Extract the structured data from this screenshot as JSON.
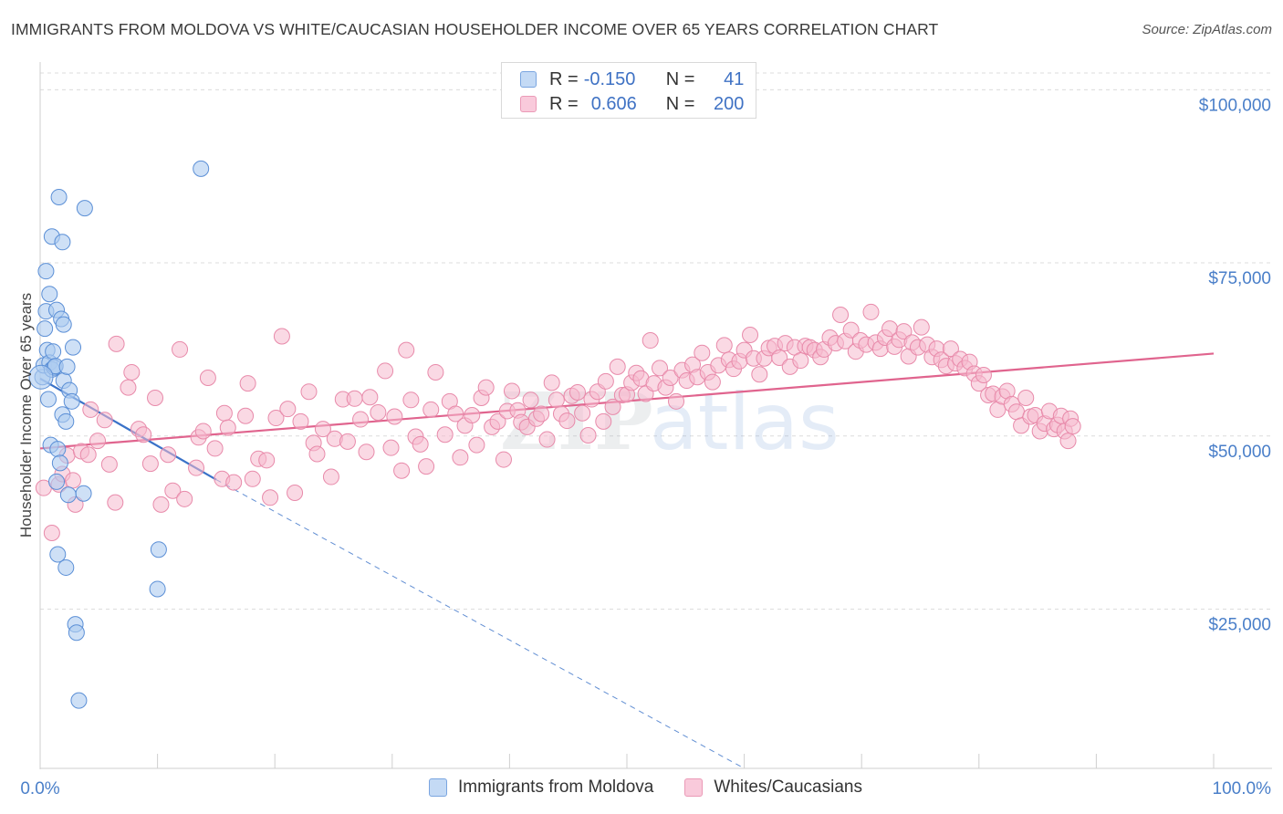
{
  "header": {
    "title": "IMMIGRANTS FROM MOLDOVA VS WHITE/CAUCASIAN HOUSEHOLDER INCOME OVER 65 YEARS CORRELATION CHART",
    "source": "Source: ZipAtlas.com"
  },
  "legend_top": {
    "rows": [
      {
        "r_label": "R =",
        "r_value": "-0.150",
        "n_label": "N =",
        "n_value": "41"
      },
      {
        "r_label": "R =",
        "r_value": "0.606",
        "n_label": "N =",
        "n_value": "200"
      }
    ]
  },
  "legend_bottom": {
    "items": [
      "Immigrants from Moldova",
      "Whites/Caucasians"
    ]
  },
  "colors": {
    "blue_fill": "#aecbf0",
    "blue_stroke": "#5b8fd6",
    "blue_line": "#3a72c8",
    "pink_fill": "#f6b9cd",
    "pink_stroke": "#e88aaa",
    "pink_line": "#e0648e",
    "grid": "#dcdcdc",
    "tick_label": "#4a7fc9"
  },
  "chart_data": {
    "type": "scatter",
    "title": "IMMIGRANTS FROM MOLDOVA VS WHITE/CAUCASIAN HOUSEHOLDER INCOME OVER 65 YEARS CORRELATION CHART",
    "xlabel": "",
    "ylabel": "Householder Income Over 65 years",
    "x_tick_labels": [
      "0.0%",
      "100.0%"
    ],
    "y_tick_labels": [
      "$25,000",
      "$50,000",
      "$75,000",
      "$100,000"
    ],
    "y_ticks": [
      25000,
      50000,
      75000,
      100000
    ],
    "xlim": [
      0,
      100
    ],
    "ylim": [
      2000,
      104000
    ],
    "grid": true,
    "legend_position": "top-center",
    "watermark": "ZIPatlas",
    "series": [
      {
        "name": "Immigrants from Moldova",
        "color": "#aecbf0",
        "points": [
          [
            0.2,
            58.5
          ],
          [
            0.3,
            60.2
          ],
          [
            0.4,
            65.5
          ],
          [
            0.5,
            68.0
          ],
          [
            0.5,
            73.8
          ],
          [
            0.6,
            62.4
          ],
          [
            0.7,
            55.3
          ],
          [
            0.8,
            70.5
          ],
          [
            0.8,
            60.6
          ],
          [
            0.9,
            48.7
          ],
          [
            1.0,
            78.8
          ],
          [
            1.0,
            59.6
          ],
          [
            1.1,
            62.2
          ],
          [
            1.2,
            59.9
          ],
          [
            1.3,
            60.1
          ],
          [
            1.4,
            68.2
          ],
          [
            1.4,
            43.4
          ],
          [
            1.5,
            48.1
          ],
          [
            1.5,
            32.9
          ],
          [
            1.6,
            84.5
          ],
          [
            1.7,
            46.1
          ],
          [
            1.8,
            66.9
          ],
          [
            1.9,
            53.1
          ],
          [
            1.9,
            78.0
          ],
          [
            2.0,
            66.1
          ],
          [
            2.0,
            58.0
          ],
          [
            2.2,
            31.0
          ],
          [
            2.2,
            52.1
          ],
          [
            2.3,
            60.0
          ],
          [
            2.4,
            41.5
          ],
          [
            2.5,
            56.6
          ],
          [
            2.7,
            55.0
          ],
          [
            2.8,
            62.8
          ],
          [
            3.0,
            22.8
          ],
          [
            3.1,
            21.6
          ],
          [
            3.3,
            11.8
          ],
          [
            3.7,
            41.7
          ],
          [
            3.8,
            82.9
          ],
          [
            10.0,
            27.9
          ],
          [
            10.1,
            33.6
          ],
          [
            13.7,
            88.6
          ]
        ],
        "trend": {
          "x": [
            0,
            15
          ],
          "y": [
            58.3,
            43.7
          ]
        },
        "trend_extension": {
          "x": [
            15,
            60
          ],
          "y": [
            43.7,
            2.0
          ]
        }
      },
      {
        "name": "Whites/Caucasians",
        "color": "#f6b9cd",
        "points": [
          [
            0.3,
            42.5
          ],
          [
            1.0,
            36.0
          ],
          [
            1.6,
            43.0
          ],
          [
            1.9,
            44.5
          ],
          [
            2.3,
            47.2
          ],
          [
            2.8,
            43.6
          ],
          [
            3.0,
            40.1
          ],
          [
            3.5,
            47.8
          ],
          [
            4.1,
            47.3
          ],
          [
            4.3,
            53.8
          ],
          [
            4.9,
            49.3
          ],
          [
            5.5,
            52.3
          ],
          [
            5.9,
            45.9
          ],
          [
            6.4,
            40.4
          ],
          [
            6.5,
            63.3
          ],
          [
            7.5,
            57.0
          ],
          [
            7.8,
            59.2
          ],
          [
            8.4,
            51.0
          ],
          [
            8.8,
            50.2
          ],
          [
            9.4,
            46.0
          ],
          [
            9.8,
            55.5
          ],
          [
            10.3,
            40.1
          ],
          [
            10.9,
            47.3
          ],
          [
            11.3,
            42.1
          ],
          [
            11.9,
            62.5
          ],
          [
            12.3,
            40.9
          ],
          [
            13.3,
            45.4
          ],
          [
            13.5,
            49.8
          ],
          [
            13.9,
            50.7
          ],
          [
            14.3,
            58.4
          ],
          [
            14.9,
            48.2
          ],
          [
            15.5,
            43.8
          ],
          [
            15.7,
            53.3
          ],
          [
            16.0,
            51.2
          ],
          [
            16.5,
            43.3
          ],
          [
            17.5,
            52.9
          ],
          [
            17.7,
            57.6
          ],
          [
            18.1,
            43.8
          ],
          [
            18.6,
            46.7
          ],
          [
            19.3,
            46.5
          ],
          [
            19.6,
            41.1
          ],
          [
            20.1,
            52.6
          ],
          [
            20.6,
            64.4
          ],
          [
            21.1,
            53.9
          ],
          [
            21.7,
            41.8
          ],
          [
            22.2,
            52.1
          ],
          [
            22.9,
            56.4
          ],
          [
            23.3,
            49.0
          ],
          [
            23.6,
            47.4
          ],
          [
            24.1,
            51.0
          ],
          [
            24.8,
            44.1
          ],
          [
            25.1,
            49.6
          ],
          [
            25.8,
            55.3
          ],
          [
            26.2,
            49.2
          ],
          [
            26.8,
            55.4
          ],
          [
            27.3,
            52.4
          ],
          [
            27.8,
            47.7
          ],
          [
            28.1,
            55.6
          ],
          [
            28.8,
            53.4
          ],
          [
            29.4,
            59.4
          ],
          [
            29.9,
            48.3
          ],
          [
            30.2,
            52.8
          ],
          [
            30.8,
            45.0
          ],
          [
            31.2,
            62.4
          ],
          [
            31.6,
            55.2
          ],
          [
            32.0,
            49.9
          ],
          [
            32.4,
            48.8
          ],
          [
            32.9,
            45.6
          ],
          [
            33.3,
            53.8
          ],
          [
            33.7,
            59.2
          ],
          [
            34.5,
            50.2
          ],
          [
            34.9,
            55.0
          ],
          [
            35.4,
            53.2
          ],
          [
            35.8,
            46.9
          ],
          [
            36.2,
            51.5
          ],
          [
            36.8,
            53.0
          ],
          [
            37.2,
            48.7
          ],
          [
            37.6,
            55.5
          ],
          [
            38.0,
            57.0
          ],
          [
            38.5,
            51.3
          ],
          [
            39.0,
            52.1
          ],
          [
            39.5,
            46.6
          ],
          [
            39.8,
            53.6
          ],
          [
            40.2,
            56.5
          ],
          [
            40.7,
            53.7
          ],
          [
            41.0,
            52.0
          ],
          [
            41.5,
            51.3
          ],
          [
            41.8,
            55.2
          ],
          [
            42.3,
            52.5
          ],
          [
            42.7,
            53.2
          ],
          [
            43.2,
            49.5
          ],
          [
            43.6,
            57.7
          ],
          [
            44.0,
            55.2
          ],
          [
            44.4,
            53.2
          ],
          [
            44.9,
            52.2
          ],
          [
            45.3,
            55.8
          ],
          [
            45.8,
            56.3
          ],
          [
            46.2,
            53.3
          ],
          [
            46.7,
            50.1
          ],
          [
            47.0,
            55.3
          ],
          [
            47.5,
            56.4
          ],
          [
            48.0,
            52.1
          ],
          [
            48.2,
            57.9
          ],
          [
            48.8,
            54.2
          ],
          [
            49.2,
            60.0
          ],
          [
            49.6,
            55.9
          ],
          [
            50.0,
            56.0
          ],
          [
            50.4,
            57.7
          ],
          [
            50.8,
            59.1
          ],
          [
            51.2,
            58.3
          ],
          [
            51.6,
            56.1
          ],
          [
            52.0,
            63.8
          ],
          [
            52.3,
            57.6
          ],
          [
            52.8,
            59.8
          ],
          [
            53.3,
            57.0
          ],
          [
            53.7,
            58.4
          ],
          [
            54.2,
            55.0
          ],
          [
            54.7,
            59.5
          ],
          [
            55.1,
            58.0
          ],
          [
            55.6,
            60.3
          ],
          [
            56.0,
            58.5
          ],
          [
            56.4,
            62.0
          ],
          [
            56.9,
            59.2
          ],
          [
            57.3,
            57.8
          ],
          [
            57.8,
            60.2
          ],
          [
            58.3,
            63.1
          ],
          [
            58.7,
            61.0
          ],
          [
            59.1,
            59.7
          ],
          [
            59.6,
            60.8
          ],
          [
            60.0,
            62.4
          ],
          [
            60.5,
            64.6
          ],
          [
            60.8,
            61.2
          ],
          [
            61.3,
            58.9
          ],
          [
            61.7,
            61.2
          ],
          [
            62.1,
            62.7
          ],
          [
            62.6,
            63.0
          ],
          [
            63.0,
            61.3
          ],
          [
            63.5,
            63.4
          ],
          [
            63.9,
            60.0
          ],
          [
            64.3,
            62.8
          ],
          [
            64.8,
            60.9
          ],
          [
            65.2,
            63.0
          ],
          [
            65.6,
            62.8
          ],
          [
            66.0,
            62.4
          ],
          [
            66.5,
            61.4
          ],
          [
            66.8,
            62.5
          ],
          [
            67.3,
            64.2
          ],
          [
            67.8,
            63.4
          ],
          [
            68.2,
            67.5
          ],
          [
            68.6,
            63.7
          ],
          [
            69.1,
            65.3
          ],
          [
            69.5,
            62.2
          ],
          [
            69.9,
            63.8
          ],
          [
            70.4,
            63.2
          ],
          [
            70.8,
            67.9
          ],
          [
            71.2,
            63.5
          ],
          [
            71.6,
            62.6
          ],
          [
            72.0,
            64.2
          ],
          [
            72.4,
            65.5
          ],
          [
            72.8,
            62.9
          ],
          [
            73.2,
            63.9
          ],
          [
            73.6,
            65.1
          ],
          [
            74.0,
            61.5
          ],
          [
            74.3,
            63.5
          ],
          [
            74.8,
            62.8
          ],
          [
            75.1,
            65.7
          ],
          [
            75.6,
            63.2
          ],
          [
            76.0,
            61.4
          ],
          [
            76.4,
            62.6
          ],
          [
            76.8,
            61.0
          ],
          [
            77.2,
            60.1
          ],
          [
            77.6,
            62.6
          ],
          [
            78.0,
            60.5
          ],
          [
            78.4,
            61.1
          ],
          [
            78.8,
            59.8
          ],
          [
            79.2,
            60.7
          ],
          [
            79.6,
            59.0
          ],
          [
            80.0,
            57.6
          ],
          [
            80.4,
            58.8
          ],
          [
            80.8,
            55.9
          ],
          [
            81.2,
            56.1
          ],
          [
            81.6,
            53.8
          ],
          [
            82.0,
            55.7
          ],
          [
            82.4,
            56.5
          ],
          [
            82.8,
            54.6
          ],
          [
            83.2,
            53.5
          ],
          [
            83.6,
            51.5
          ],
          [
            84.0,
            55.5
          ],
          [
            84.4,
            52.8
          ],
          [
            84.8,
            53.0
          ],
          [
            85.2,
            50.7
          ],
          [
            85.6,
            51.8
          ],
          [
            86.0,
            53.6
          ],
          [
            86.4,
            51.0
          ],
          [
            86.7,
            51.6
          ],
          [
            87.0,
            52.9
          ],
          [
            87.3,
            50.7
          ],
          [
            87.6,
            49.3
          ],
          [
            87.8,
            52.5
          ],
          [
            88.0,
            51.4
          ]
        ],
        "trend": {
          "x": [
            0,
            100
          ],
          "y": [
            48.2,
            61.9
          ]
        }
      }
    ]
  }
}
